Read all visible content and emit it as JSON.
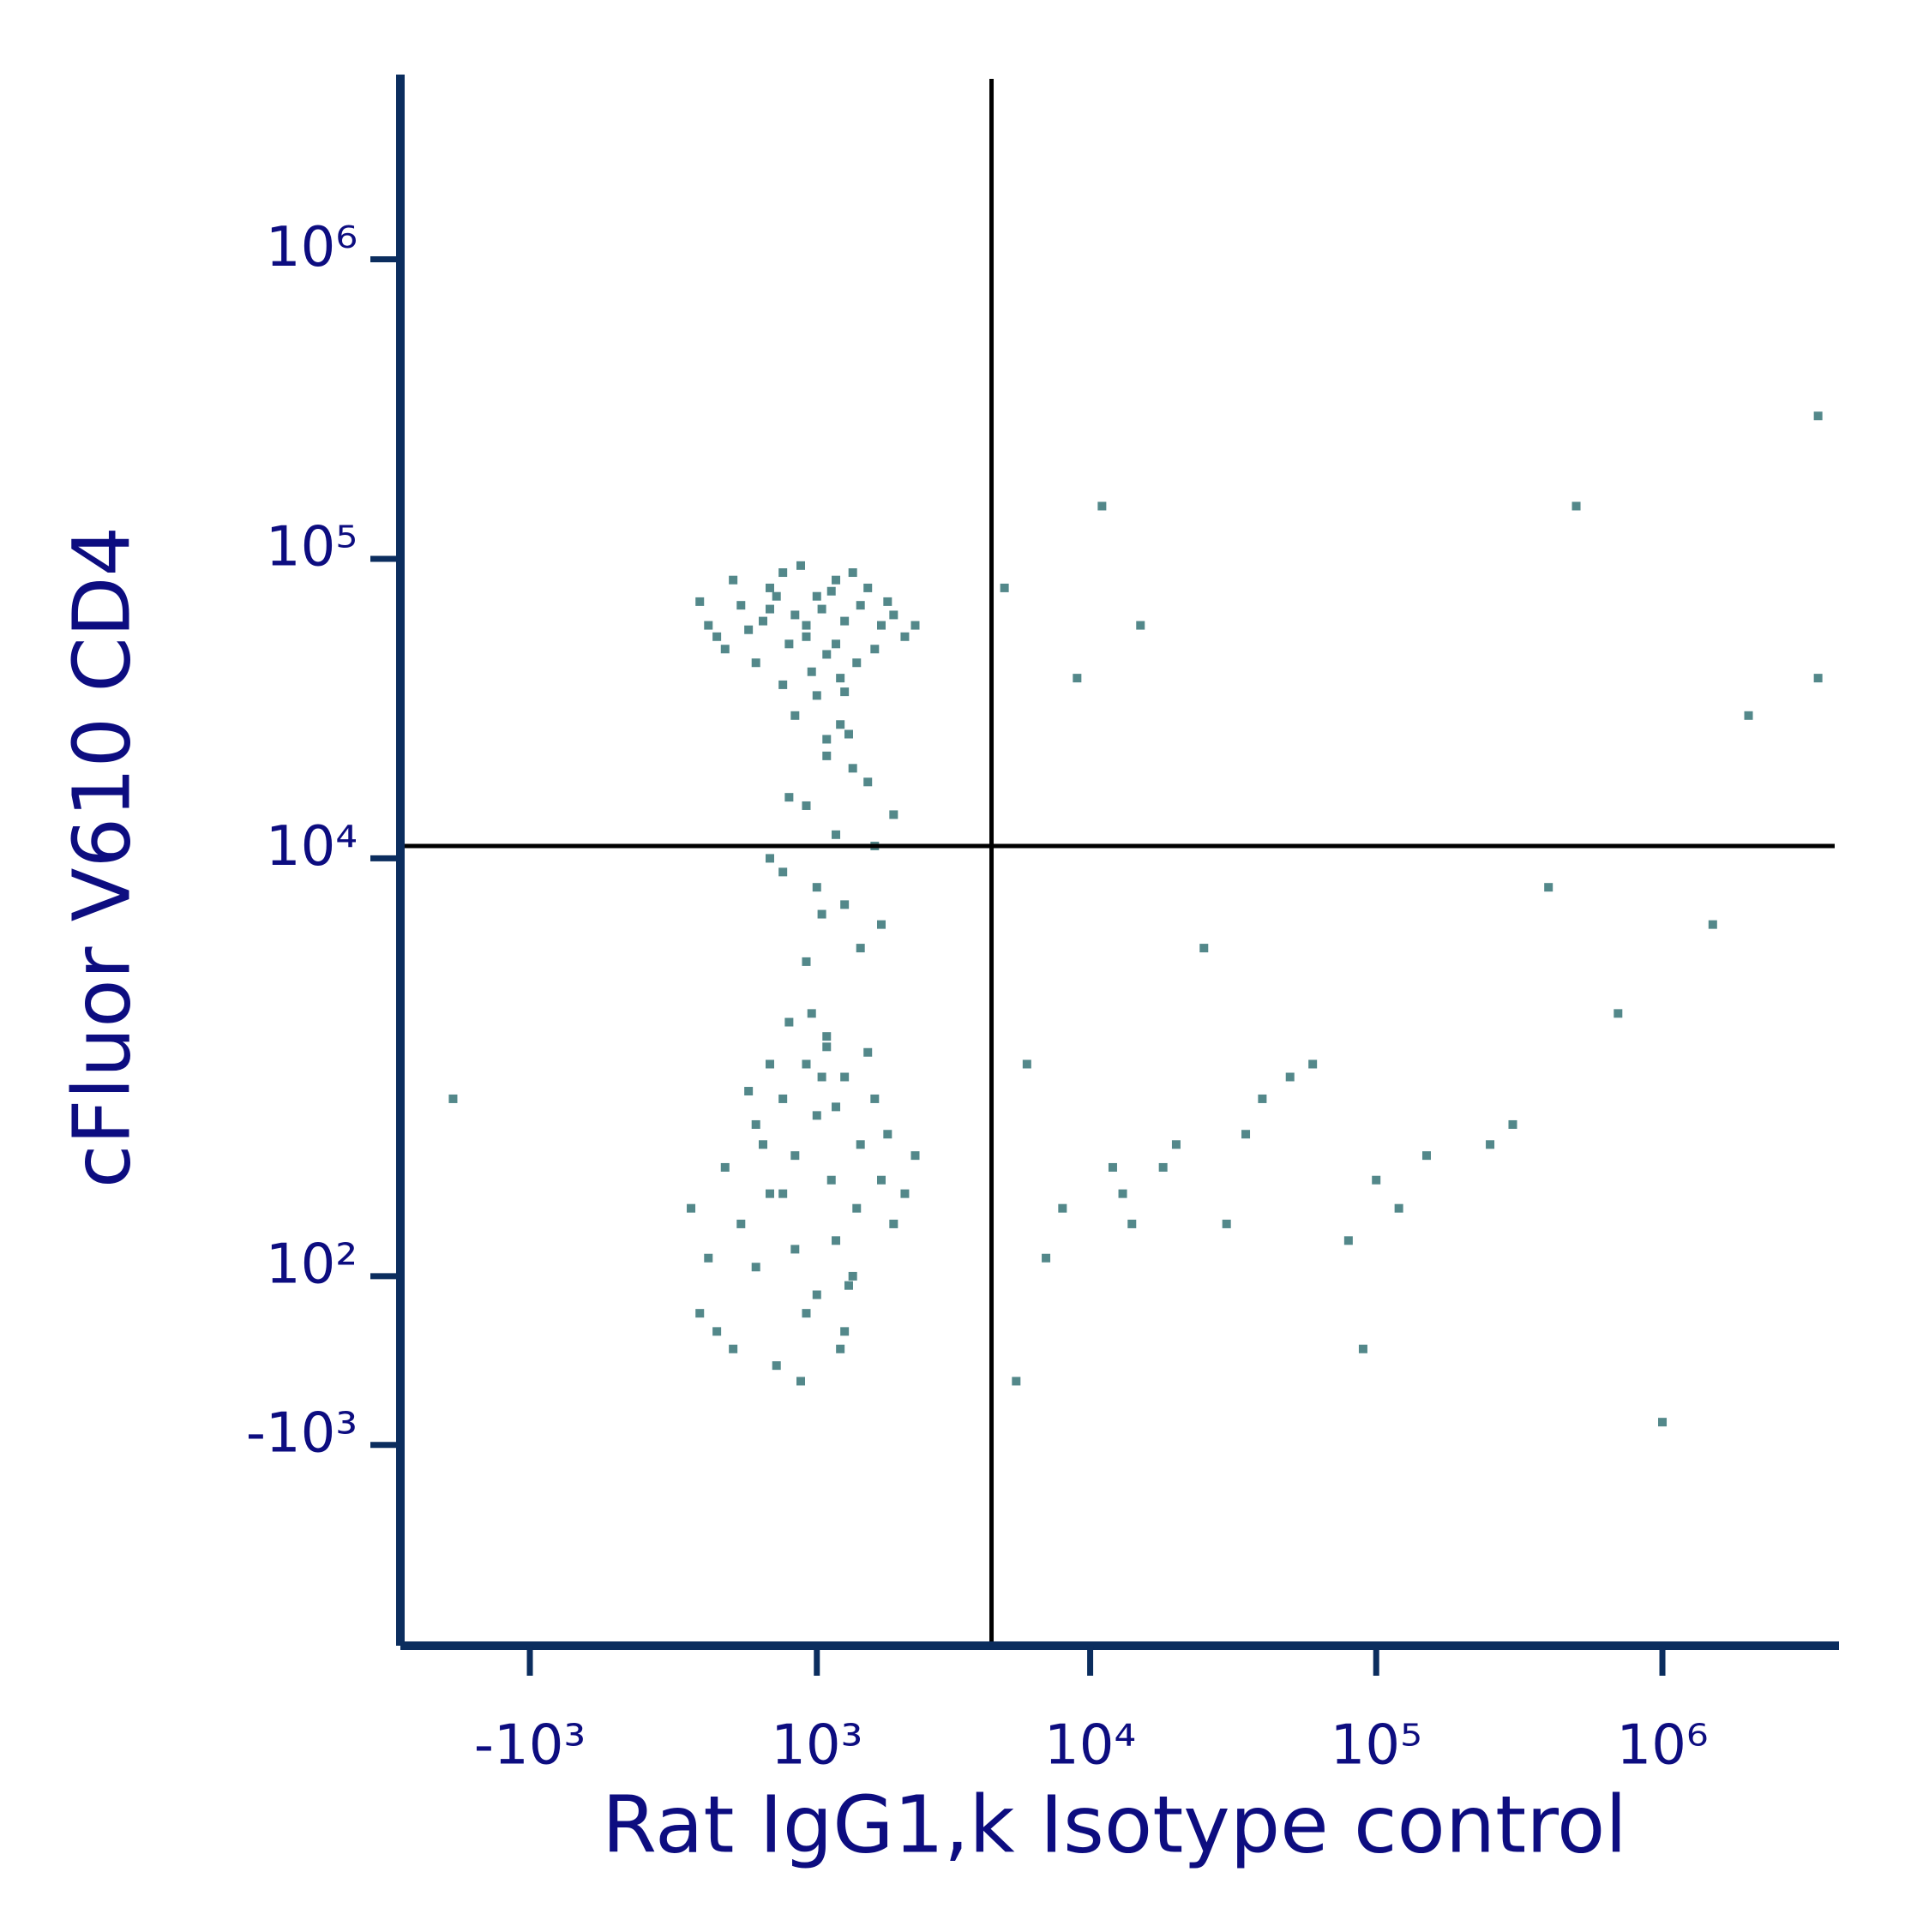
{
  "chart_data": {
    "type": "scatter",
    "x_label": "Rat IgG1,k Isotype control",
    "y_label": "cFluor V610 CD4",
    "scale": "biexponential",
    "color": "#53888a",
    "axis_color": "#0b2d5e",
    "label_color": "#0d0d80",
    "xlim": [
      -3000,
      4000000
    ],
    "ylim": [
      -5000,
      4000000
    ],
    "xticks": [
      {
        "value": -1000,
        "label": "-10³"
      },
      {
        "value": 1000,
        "label": "10³"
      },
      {
        "value": 10000,
        "label": "10⁴"
      },
      {
        "value": 100000,
        "label": "10⁵"
      },
      {
        "value": 1000000,
        "label": "10⁶"
      }
    ],
    "yticks": [
      {
        "value": 1000000,
        "label": "10⁶"
      },
      {
        "value": 100000,
        "label": "10⁵"
      },
      {
        "value": 10000,
        "label": "10⁴"
      },
      {
        "value": 100,
        "label": "10²"
      },
      {
        "value": -1000,
        "label": "-10³"
      }
    ],
    "quadrant_gate": {
      "x": 4500,
      "y": 11000
    },
    "x": [
      200,
      400,
      600,
      800,
      1000,
      1200,
      1500,
      1800,
      2200,
      300,
      500,
      700,
      900,
      1100,
      1300,
      1600,
      2000,
      150,
      450,
      750,
      1050,
      1400,
      1700,
      2400,
      350,
      650,
      950,
      1250,
      550,
      850,
      1150,
      1450,
      250,
      1900,
      1000,
      700,
      1300,
      600,
      900,
      1200,
      800,
      1100,
      1400,
      900,
      1200,
      1600,
      700,
      1000,
      1300,
      1800,
      600,
      1500,
      1100,
      900,
      2000,
      1250,
      750,
      1700,
      1050,
      1350,
      100,
      300,
      500,
      700,
      900,
      1100,
      1300,
      1500,
      1800,
      2200,
      200,
      400,
      600,
      800,
      1000,
      1200,
      1400,
      1700,
      2000,
      2400,
      150,
      350,
      550,
      750,
      950,
      1150,
      1350,
      1600,
      1900,
      250,
      450,
      650,
      850,
      1050,
      1250,
      1450,
      1000,
      800,
      600,
      1200,
      900,
      700,
      1100,
      500,
      1300,
      6000,
      8000,
      12000,
      20000,
      40000,
      100000,
      300000,
      700000,
      1500000,
      3500000,
      9000,
      15000,
      25000,
      50000,
      80000,
      150000,
      400000,
      1000000,
      7000,
      11000,
      18000,
      30000,
      60000,
      120000,
      250000,
      500000,
      2000000,
      5500,
      13000,
      35000,
      5000,
      14000,
      90000,
      -2000,
      3500000
    ],
    "values": [
      60000,
      70000,
      80000,
      65000,
      75000,
      85000,
      70000,
      60000,
      55000,
      50000,
      45000,
      90000,
      55000,
      48000,
      62000,
      80000,
      65000,
      72000,
      58000,
      52000,
      68000,
      90000,
      50000,
      60000,
      85000,
      75000,
      42000,
      40000,
      62000,
      95000,
      78000,
      45000,
      55000,
      72000,
      35000,
      38000,
      36000,
      68000,
      60000,
      52000,
      30000,
      25000,
      20000,
      15000,
      12000,
      18000,
      9000,
      8000,
      7000,
      6000,
      10000,
      5000,
      22000,
      4500,
      14000,
      28000,
      16000,
      11000,
      6500,
      26000,
      500,
      800,
      1200,
      1500,
      2000,
      2500,
      1800,
      1000,
      700,
      600,
      200,
      400,
      600,
      900,
      1300,
      300,
      100,
      1500,
      400,
      900,
      -100,
      -300,
      1000,
      2800,
      3000,
      700,
      50,
      2200,
      1100,
      -200,
      1600,
      -400,
      -500,
      1800,
      -300,
      500,
      0,
      250,
      2000,
      1400,
      -100,
      600,
      2300,
      150,
      -200,
      2000,
      500,
      800,
      1000,
      1500,
      700,
      1200,
      3000,
      6000,
      300000,
      40000,
      60000,
      5000,
      1800,
      300,
      900,
      8000,
      -800,
      200,
      150000,
      800,
      400,
      2000,
      500,
      1000,
      150000,
      30000,
      -500,
      600,
      1100,
      80000,
      400,
      -300,
      1500,
      40000
    ]
  }
}
